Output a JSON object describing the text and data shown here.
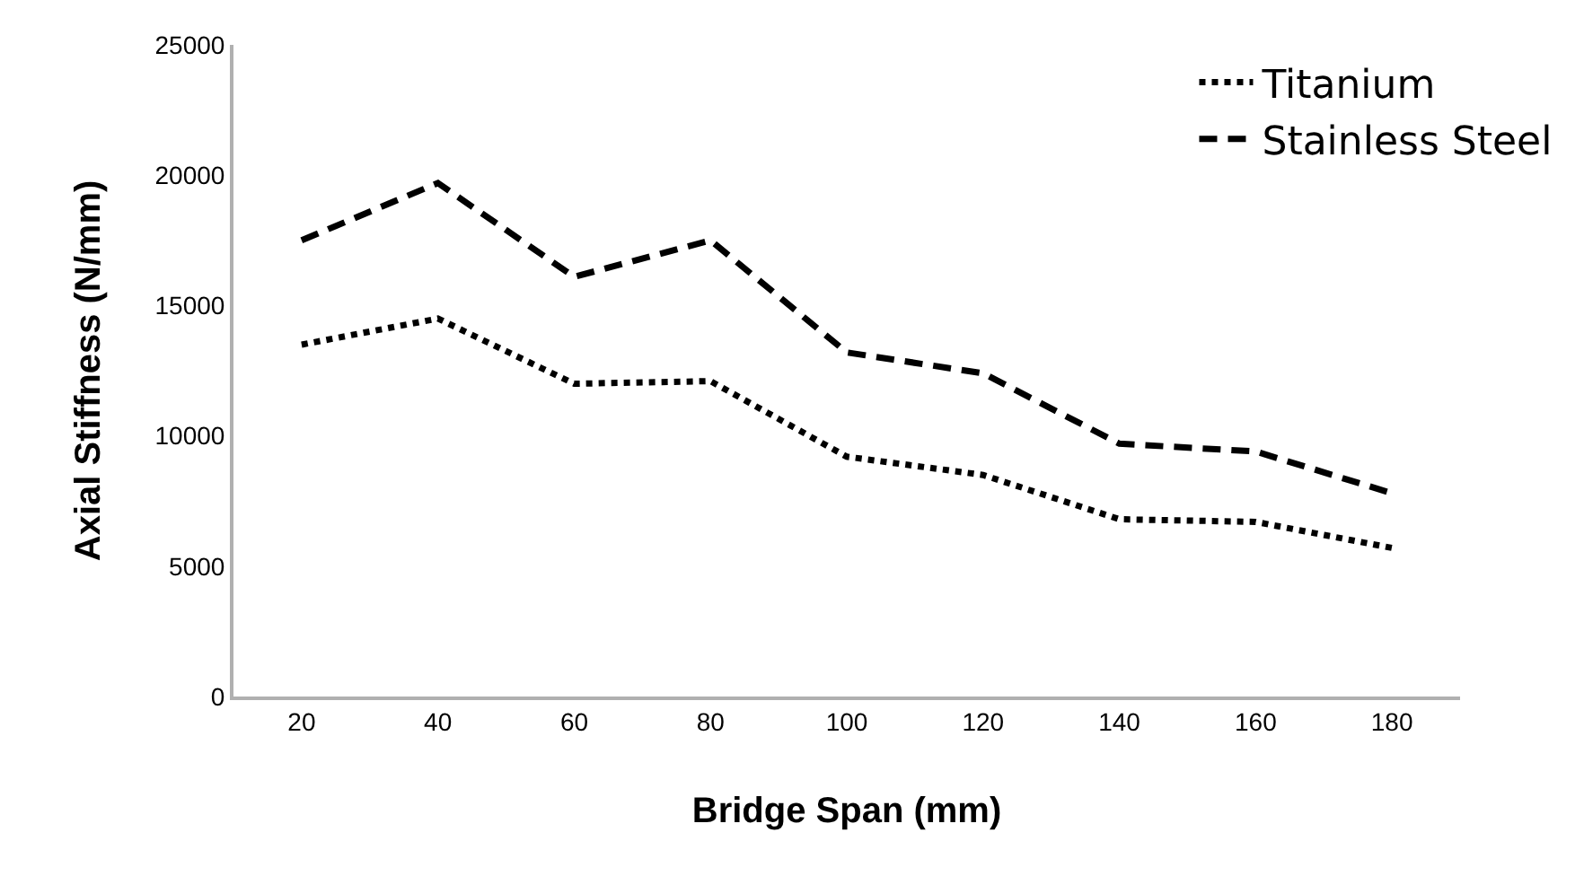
{
  "chart_data": {
    "type": "line",
    "xlabel": "Bridge Span (mm)",
    "ylabel": "Axial Stiffness (N/mm)",
    "categories": [
      "20",
      "40",
      "60",
      "80",
      "100",
      "120",
      "140",
      "160",
      "180"
    ],
    "series": [
      {
        "name": "Titanium",
        "color": "#000000",
        "line_style": "dotted",
        "values": [
          13500,
          14500,
          12000,
          12100,
          9200,
          8500,
          6800,
          6700,
          5700
        ]
      },
      {
        "name": "Stainless Steel",
        "color": "#000000",
        "line_style": "dashed",
        "values": [
          17500,
          19700,
          16100,
          17500,
          13200,
          12400,
          9700,
          9400,
          7800
        ]
      }
    ],
    "ylim": [
      0,
      25000
    ],
    "yticks": [
      0,
      5000,
      10000,
      15000,
      20000,
      25000
    ],
    "grid": false,
    "legend": "top right",
    "marker": "none"
  }
}
